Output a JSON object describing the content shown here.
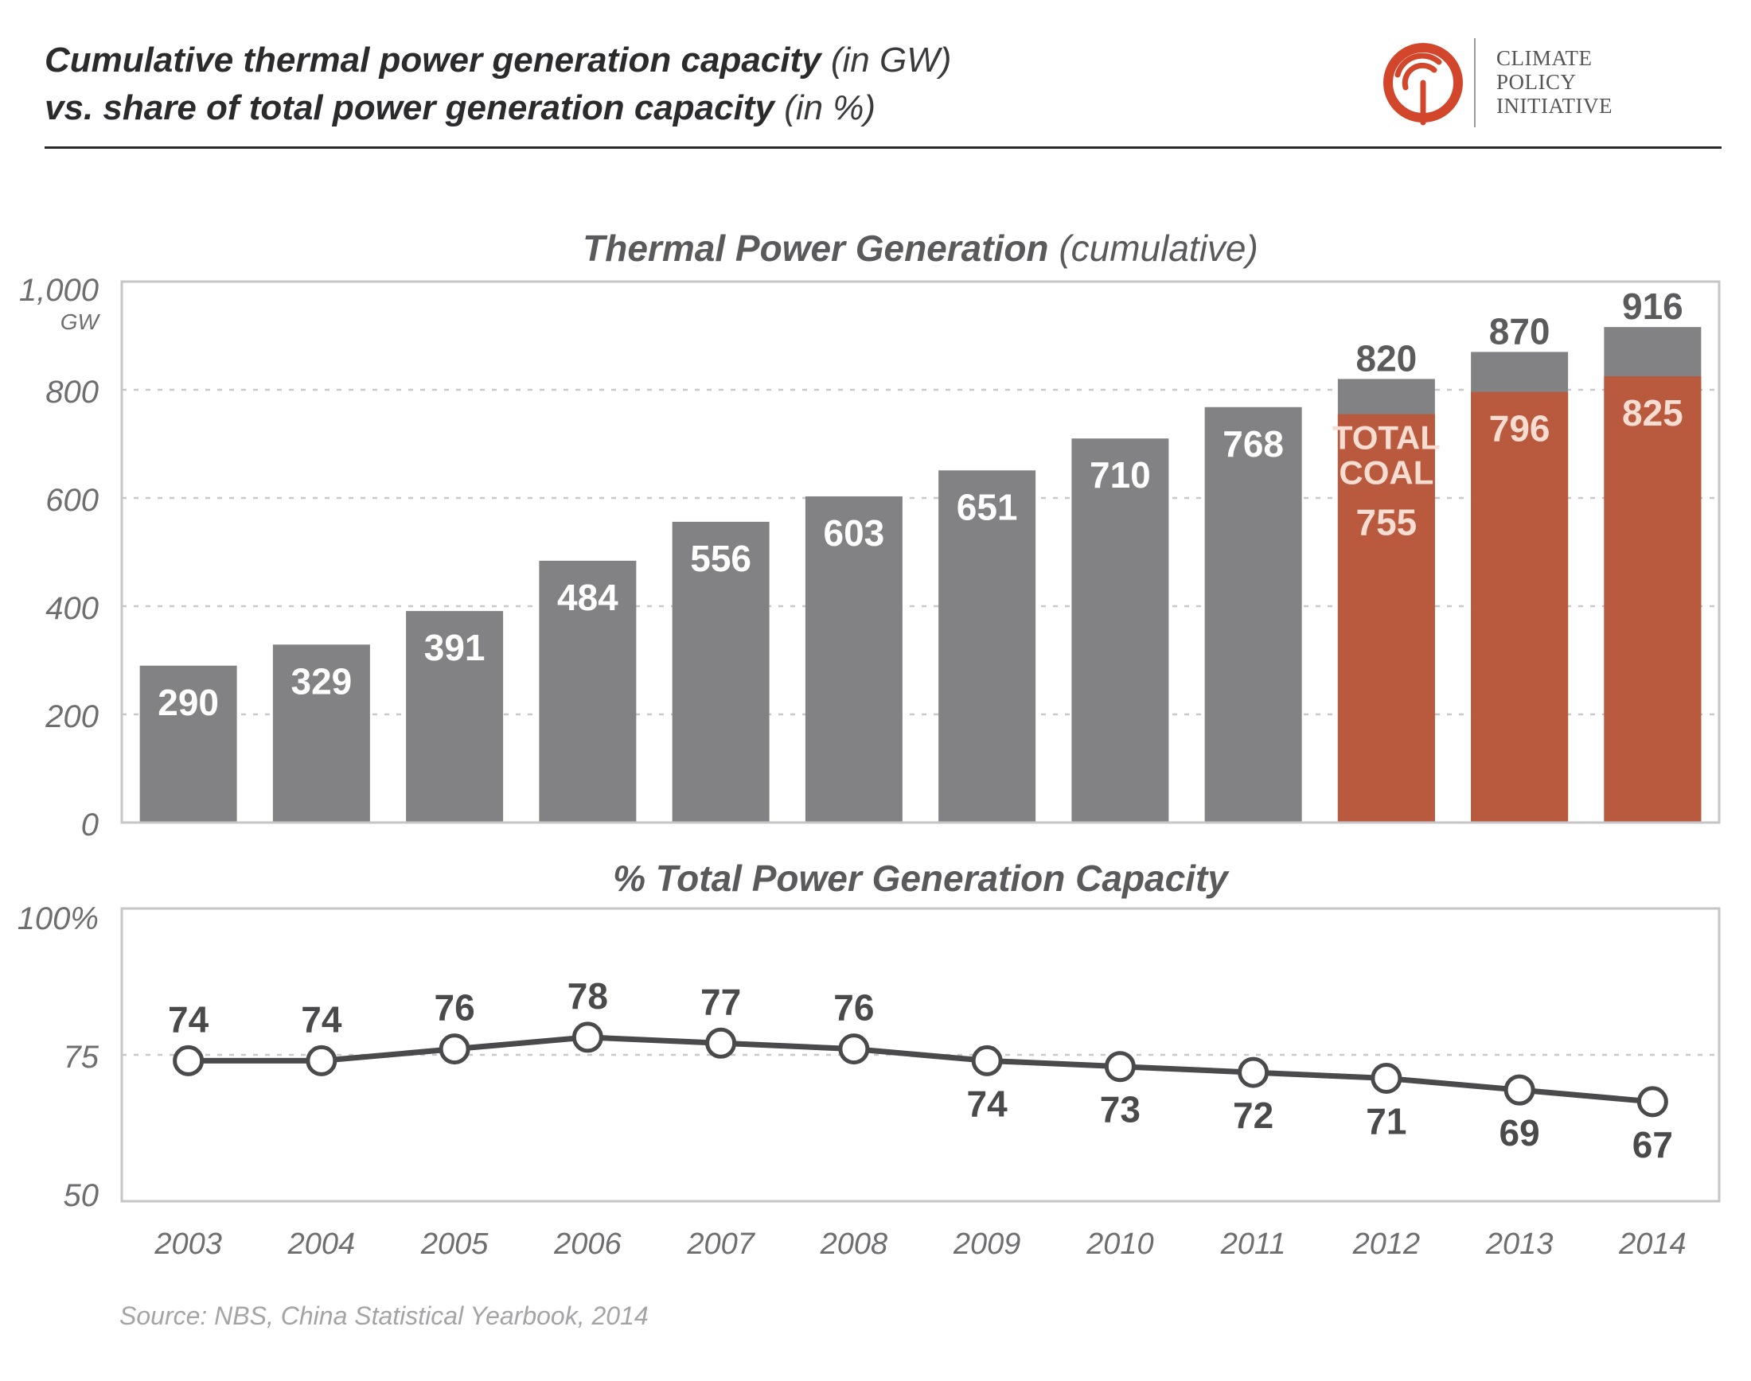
{
  "header": {
    "title_line1_bold": "Cumulative thermal power generation capacity",
    "title_line1_unit": "(in GW)",
    "title_line2_bold": "vs. share of total power generation capacity",
    "title_line2_unit": "(in %)"
  },
  "logo": {
    "lines": [
      "CLIMATE",
      "POLICY",
      "INITIATIVE"
    ],
    "mark_color": "#d2462c"
  },
  "source": "Source: NBS, China Statistical Yearbook, 2014",
  "colors": {
    "thermal_bar": "#828285",
    "coal_bar": "#b95a3e",
    "line": "#4a4a4c",
    "frame": "#c6c6c8",
    "grid": "#c8c8ca",
    "axis_text": "#6e6e70",
    "panel_title": "#5a5a5c"
  },
  "chart_data": [
    {
      "type": "bar",
      "title": "Thermal Power Generation",
      "subtitle": "(cumulative)",
      "ylabel": "GW",
      "ylim": [
        0,
        1000
      ],
      "yticks": [
        "0",
        "200",
        "400",
        "600",
        "800",
        "1,000"
      ],
      "grid": true,
      "categories": [
        "2003",
        "2004",
        "2005",
        "2006",
        "2007",
        "2008",
        "2009",
        "2010",
        "2011",
        "2012",
        "2013",
        "2014"
      ],
      "series": [
        {
          "values": [
            290,
            329,
            391,
            484,
            556,
            603,
            651,
            710,
            768,
            820,
            870,
            916
          ]
        },
        {
          "values": [
            null,
            null,
            null,
            null,
            null,
            null,
            null,
            null,
            null,
            755,
            796,
            825
          ]
        }
      ],
      "annotations": [
        "TOTAL",
        "COAL"
      ]
    },
    {
      "type": "line",
      "title": "% Total Power Generation Capacity",
      "ylim": [
        50,
        100
      ],
      "yticks": [
        "50",
        "75",
        "100%"
      ],
      "grid": true,
      "categories": [
        "2003",
        "2004",
        "2005",
        "2006",
        "2007",
        "2008",
        "2009",
        "2010",
        "2011",
        "2012",
        "2013",
        "2014"
      ],
      "values": [
        74,
        74,
        76,
        78,
        77,
        76,
        74,
        73,
        72,
        71,
        69,
        67
      ]
    }
  ]
}
